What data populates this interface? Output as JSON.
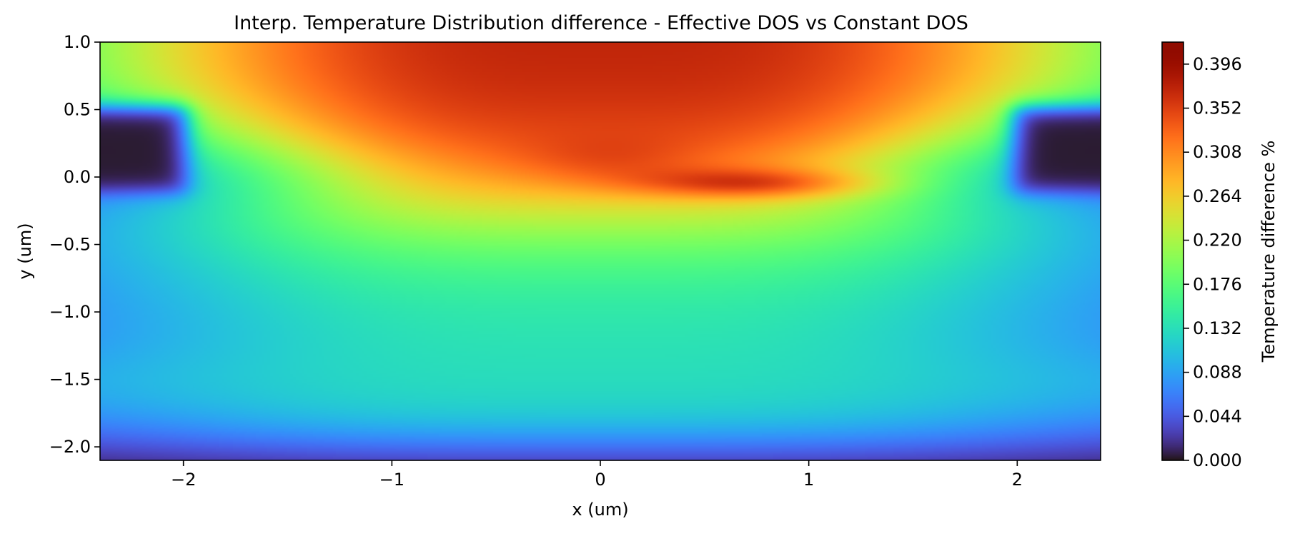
{
  "chart_data": {
    "type": "heatmap",
    "title": "Interp. Temperature Distribution difference - Effective DOS vs Constant DOS",
    "xlabel": "x (um)",
    "ylabel": "y (um)",
    "xlim": [
      -2.4,
      2.4
    ],
    "ylim": [
      -2.1,
      1.0
    ],
    "x_ticks": [
      -2,
      -1,
      0,
      1,
      2
    ],
    "x_tick_labels": [
      "−2",
      "−1",
      "0",
      "1",
      "2"
    ],
    "y_ticks": [
      1.0,
      0.5,
      0.0,
      -0.5,
      -1.0,
      -1.5,
      -2.0
    ],
    "y_tick_labels": [
      "1.0",
      "0.5",
      "0.0",
      "−0.5",
      "−1.0",
      "−1.5",
      "−2.0"
    ],
    "colormap": "turbo",
    "colorbar": {
      "label": "Temperature difference %",
      "min": 0.0,
      "max": 0.418,
      "ticks": [
        0.0,
        0.044,
        0.088,
        0.132,
        0.176,
        0.22,
        0.264,
        0.308,
        0.352,
        0.396
      ],
      "tick_labels": [
        "0.000",
        "0.044",
        "0.088",
        "0.132",
        "0.176",
        "0.220",
        "0.264",
        "0.308",
        "0.352",
        "0.396"
      ]
    },
    "grid": false
  }
}
